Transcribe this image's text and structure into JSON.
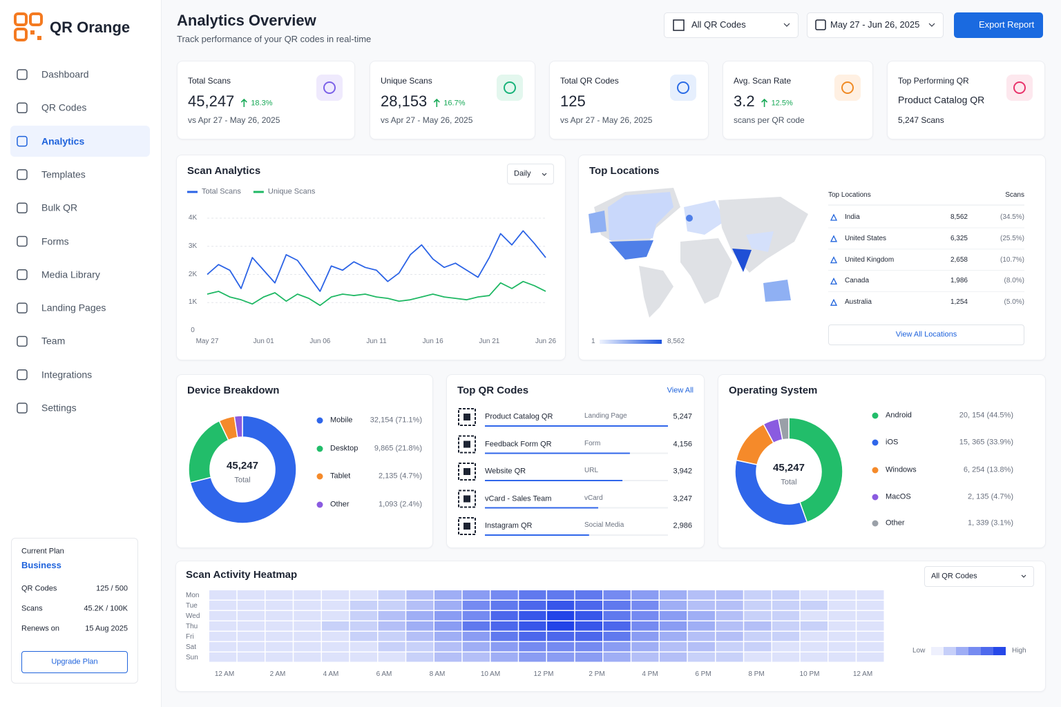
{
  "sidebar": {
    "brand": "QR Orange",
    "nav": [
      "Dashboard",
      "QR Codes",
      "Analytics",
      "Templates",
      "Bulk QR",
      "Forms",
      "Media Library",
      "Landing Pages",
      "Team",
      "Integrations",
      "Settings"
    ],
    "active": 2,
    "plan": {
      "label": "Current Plan",
      "name": "Business",
      "rows": [
        [
          "QR Codes",
          "125 / 500"
        ],
        [
          "Scans",
          "45.2K / 100K"
        ],
        [
          "Renews on",
          "15 Aug 2025"
        ]
      ],
      "button": "Upgrade Plan"
    }
  },
  "header": {
    "title": "Analytics Overview",
    "subtitle": "Track performance of your QR codes in real-time",
    "filter": "All QR Codes",
    "date": "May 27 - Jun 26, 2025",
    "export": "Export Report"
  },
  "kpis": [
    {
      "label": "Total Scans",
      "value": "45,247",
      "change": "18.3%",
      "note": "vs Apr 27 - May 26, 2025",
      "color": "#7b61e8",
      "bg": "#efeafd"
    },
    {
      "label": "Unique Scans",
      "value": "28,153",
      "change": "16.7%",
      "note": "vs Apr 27 - May 26, 2025",
      "color": "#19b37a",
      "bg": "#e3f7ee"
    },
    {
      "label": "Total QR Codes",
      "value": "125",
      "note": "vs Apr 27 - May 26, 2025",
      "color": "#2b6ce6",
      "bg": "#e6effd"
    },
    {
      "label": "Avg. Scan Rate",
      "value": "3.2",
      "change": "12.5%",
      "note": "scans per QR code",
      "color": "#f08a24",
      "bg": "#fff0e2"
    },
    {
      "label": "Top Performing QR",
      "value": "Product Catalog QR",
      "note": "5,247 Scans",
      "color": "#e8336b",
      "bg": "#fde8ee"
    }
  ],
  "scan_analytics": {
    "type": "line",
    "title": "Scan Analytics",
    "period": "Daily",
    "categories": [
      "May 27",
      null,
      null,
      null,
      null,
      "Jun 01",
      null,
      null,
      null,
      null,
      "Jun 06",
      null,
      null,
      null,
      null,
      "Jun 11",
      null,
      null,
      null,
      null,
      "Jun 16",
      null,
      null,
      null,
      null,
      "Jun 21",
      null,
      null,
      null,
      null,
      "Jun 26"
    ],
    "series": [
      {
        "name": "Total Scans",
        "color": "#2b63e6",
        "values": [
          2000,
          2350,
          2150,
          1500,
          2600,
          2150,
          1700,
          2700,
          2500,
          1950,
          1400,
          2300,
          2150,
          2450,
          2250,
          2150,
          1750,
          2050,
          2700,
          3050,
          2550,
          2250,
          2400,
          2150,
          1900,
          2600,
          3450,
          3050,
          3550,
          3100,
          2600
        ]
      },
      {
        "name": "Unique Scans",
        "color": "#1fb864",
        "values": [
          1300,
          1400,
          1200,
          1100,
          950,
          1200,
          1350,
          1050,
          1300,
          1150,
          900,
          1200,
          1300,
          1250,
          1300,
          1200,
          1150,
          1050,
          1100,
          1200,
          1300,
          1200,
          1150,
          1100,
          1200,
          1250,
          1700,
          1500,
          1750,
          1600,
          1400
        ]
      }
    ],
    "ylim": [
      0,
      4000
    ],
    "yticks": [
      0,
      {
        "value": 1000,
        "label": "1K"
      },
      {
        "value": 2000,
        "label": "2K"
      },
      {
        "value": 3000,
        "label": "3K"
      },
      {
        "value": 4000,
        "label": "4K"
      }
    ],
    "grid": true
  },
  "locations": {
    "title": "Top Locations",
    "table_title": "Top Locations",
    "scans_header": "Scans",
    "legend_min": "1",
    "legend_max": "8,562",
    "button": "View All Locations",
    "rows": [
      {
        "country": "India",
        "scans": "8,562",
        "share": "(34.5%)"
      },
      {
        "country": "United States",
        "scans": "6,325",
        "share": "(25.5%)"
      },
      {
        "country": "United Kingdom",
        "scans": "2,658",
        "share": "(10.7%)"
      },
      {
        "country": "Canada",
        "scans": "1,986",
        "share": "(8.0%)"
      },
      {
        "country": "Australia",
        "scans": "1,254",
        "share": "(5.0%)"
      }
    ]
  },
  "device": {
    "type": "pie",
    "title": "Device Breakdown",
    "total": "45,247",
    "total_label": "Total",
    "items": [
      {
        "name": "Mobile",
        "share": 71.1,
        "label": "32,154 (71.1%)",
        "color": "#2f66ea"
      },
      {
        "name": "Desktop",
        "share": 21.8,
        "label": "9,865 (21.8%)",
        "color": "#22bd6a"
      },
      {
        "name": "Tablet",
        "share": 4.7,
        "label": "2,135 (4.7%)",
        "color": "#f58a2a"
      },
      {
        "name": "Other",
        "share": 2.4,
        "label": "1,093 (2.4%)",
        "color": "#8a5be0"
      }
    ]
  },
  "top_qr": {
    "title": "Top QR Codes",
    "view_all": "View All",
    "rows": [
      {
        "name": "Product Catalog QR",
        "type": "Landing Page",
        "scans": 5247,
        "label": "5,247"
      },
      {
        "name": "Feedback Form QR",
        "type": "Form",
        "scans": 4156,
        "label": "4,156"
      },
      {
        "name": "Website QR",
        "type": "URL",
        "scans": 3942,
        "label": "3,942"
      },
      {
        "name": "vCard - Sales Team",
        "type": "vCard",
        "scans": 3247,
        "label": "3,247"
      },
      {
        "name": "Instagram QR",
        "type": "Social Media",
        "scans": 2986,
        "label": "2,986"
      }
    ]
  },
  "os": {
    "type": "pie",
    "title": "Operating System",
    "total": "45,247",
    "total_label": "Total",
    "items": [
      {
        "name": "Android",
        "share": 44.5,
        "label": "20, 154 (44.5%)",
        "color": "#22bd6a"
      },
      {
        "name": "iOS",
        "share": 33.9,
        "label": "15, 365 (33.9%)",
        "color": "#2f66ea"
      },
      {
        "name": "Windows",
        "share": 13.8,
        "label": "6, 254 (13.8%)",
        "color": "#f58a2a"
      },
      {
        "name": "MacOS",
        "share": 4.7,
        "label": "2, 135 (4.7%)",
        "color": "#8a5be0"
      },
      {
        "name": "Other",
        "share": 3.1,
        "label": "1, 339 (3.1%)",
        "color": "#9aa0a8"
      }
    ]
  },
  "heatmap": {
    "title": "Scan Activity Heatmap",
    "filter": "All QR Codes",
    "low": "Low",
    "high": "High",
    "days": [
      "Mon",
      "Tue",
      "Wed",
      "Thu",
      "Fri",
      "Sat",
      "Sun"
    ],
    "hours": [
      "12 AM",
      "2 AM",
      "4 AM",
      "6 AM",
      "8 AM",
      "10 AM",
      "12 PM",
      "2 PM",
      "4 PM",
      "6 PM",
      "8 PM",
      "10 PM",
      "12 AM"
    ],
    "range": [
      0,
      10
    ],
    "values": [
      [
        1,
        1,
        1,
        1,
        1,
        1,
        2,
        3,
        4,
        5,
        6,
        7,
        7,
        7,
        6,
        5,
        4,
        3,
        3,
        2,
        2,
        1,
        1,
        1
      ],
      [
        1,
        1,
        1,
        1,
        1,
        2,
        2,
        3,
        4,
        6,
        7,
        8,
        9,
        8,
        7,
        6,
        4,
        3,
        3,
        2,
        2,
        2,
        1,
        1
      ],
      [
        1,
        1,
        1,
        1,
        1,
        2,
        3,
        4,
        5,
        6,
        8,
        9,
        10,
        9,
        7,
        6,
        5,
        4,
        3,
        2,
        2,
        1,
        1,
        1
      ],
      [
        1,
        1,
        1,
        1,
        2,
        2,
        3,
        4,
        5,
        7,
        8,
        9,
        10,
        9,
        8,
        6,
        5,
        4,
        3,
        3,
        2,
        2,
        1,
        1
      ],
      [
        1,
        1,
        1,
        1,
        1,
        2,
        2,
        3,
        4,
        5,
        7,
        8,
        8,
        8,
        7,
        5,
        4,
        3,
        3,
        2,
        2,
        1,
        1,
        1
      ],
      [
        1,
        1,
        1,
        1,
        1,
        1,
        2,
        2,
        3,
        4,
        5,
        6,
        6,
        6,
        5,
        4,
        3,
        3,
        2,
        2,
        1,
        1,
        1,
        1
      ],
      [
        1,
        1,
        1,
        1,
        1,
        1,
        1,
        2,
        3,
        3,
        4,
        5,
        5,
        5,
        4,
        3,
        3,
        2,
        2,
        1,
        1,
        1,
        1,
        1
      ]
    ]
  }
}
